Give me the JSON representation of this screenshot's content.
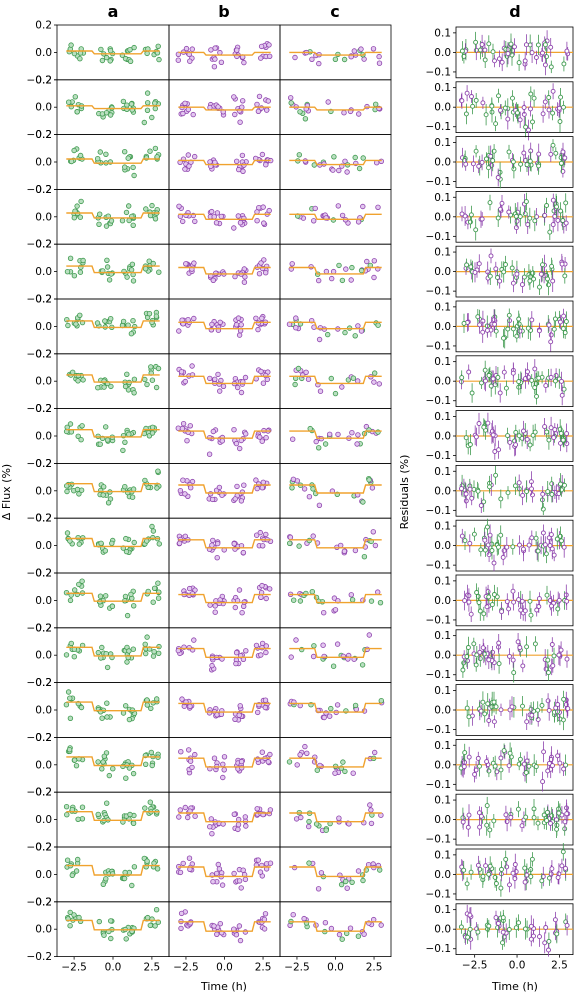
{
  "chart_data": [
    {
      "type": "scatter",
      "panels": [
        "a",
        "b",
        "c"
      ],
      "rows": 17,
      "ylabel": "Δ Flux (%)",
      "xlabel": "Time (h)",
      "ylim": [
        -0.2,
        0.2
      ],
      "yticks": [
        -0.2,
        0.0,
        0.2
      ],
      "ytick_labels": [
        "−0.2",
        "0.0",
        "0.2"
      ],
      "xlim": [
        -3.6,
        3.6
      ],
      "xticks": [
        -2.5,
        0.0,
        2.5
      ],
      "xtick_labels": [
        "−2.5",
        "0.0",
        "2.5"
      ],
      "model_color": "#f0a22e",
      "series": [
        {
          "panel": "a",
          "color": "#3f9a4f",
          "fill": "#b9dfc0"
        },
        {
          "panel": "b",
          "color": "#8e44ad",
          "fill": "#e3c7f0"
        },
        {
          "panel": "c",
          "color": "#8e44ad",
          "fill": "#e3c7f0",
          "color2": "#3f9a4f",
          "fill2": "#b9dfc0"
        }
      ],
      "transit_windows_h": [
        [
          -3.0,
          -1.9
        ],
        [
          -1.0,
          0.0
        ],
        [
          0.6,
          1.4
        ],
        [
          2.0,
          3.0
        ]
      ],
      "row_offsets": [
        0.0,
        0.0,
        0.02,
        0.03,
        0.05,
        0.05,
        0.06,
        0.06,
        0.07,
        0.07,
        0.07,
        0.08,
        0.08,
        0.08,
        0.08,
        0.09,
        0.09
      ]
    },
    {
      "type": "scatter",
      "panel": "d",
      "rows": 17,
      "ylabel": "Residuals (%)",
      "xlabel": "Time (h)",
      "ylim": [
        -0.13,
        0.13
      ],
      "yticks": [
        -0.1,
        0.0,
        0.1
      ],
      "ytick_labels": [
        "−0.1",
        "0.0",
        "0.1"
      ],
      "xlim": [
        -3.6,
        3.3
      ],
      "xticks": [
        -2.5,
        0.0,
        2.5
      ],
      "xtick_labels": [
        "−2.5",
        "0.0",
        "2.5"
      ],
      "zero_line_color": "#f0a22e",
      "series_colors": [
        "#8e44ad",
        "#3f9a4f"
      ]
    }
  ],
  "labels": {
    "a": "a",
    "b": "b",
    "c": "c",
    "d": "d",
    "flux_ylabel": "Δ Flux (%)",
    "resid_ylabel": "Residuals (%)",
    "xlabel": "Time (h)"
  }
}
